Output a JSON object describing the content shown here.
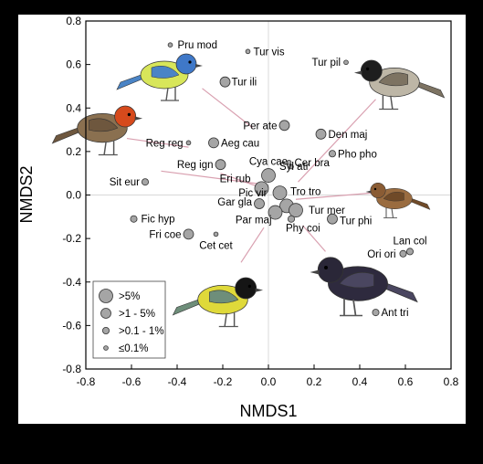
{
  "chart_data": {
    "type": "scatter",
    "title": "",
    "xlabel": "NMDS1",
    "ylabel": "NMDS2",
    "xlim": [
      -0.8,
      0.8
    ],
    "ylim": [
      -0.8,
      0.8
    ],
    "xticks": [
      "-0.8",
      "-0.6",
      "-0.4",
      "-0.2",
      "0.0",
      "0.2",
      "0.4",
      "0.6",
      "0.8"
    ],
    "yticks": [
      "0.8",
      "0.6",
      "0.4",
      "0.2",
      "0.0",
      "-0.2",
      "-0.4",
      "-0.6",
      "-0.8"
    ],
    "grid": false,
    "reference_lines": [
      0,
      0
    ],
    "legend_position": "bottom-left",
    "size_classes": [
      {
        "label": ">5%"
      },
      {
        "label": ">1 - 5%"
      },
      {
        "label": ">0.1 - 1%"
      },
      {
        "label": "≤0.1%"
      }
    ],
    "points": [
      {
        "label": "Pru mod",
        "x": -0.43,
        "y": 0.69,
        "size_class": 3
      },
      {
        "label": "Tur vis",
        "x": -0.09,
        "y": 0.66,
        "size_class": 3
      },
      {
        "label": "Tur pil",
        "x": 0.34,
        "y": 0.61,
        "size_class": 3
      },
      {
        "label": "Tur ili",
        "x": -0.19,
        "y": 0.52,
        "size_class": 1
      },
      {
        "label": "Per ate",
        "x": 0.07,
        "y": 0.32,
        "size_class": 1
      },
      {
        "label": "Den maj",
        "x": 0.23,
        "y": 0.28,
        "size_class": 1
      },
      {
        "label": "Reg reg",
        "x": -0.35,
        "y": 0.24,
        "size_class": 3
      },
      {
        "label": "Aeg cau",
        "x": -0.24,
        "y": 0.24,
        "size_class": 1
      },
      {
        "label": "Pho pho",
        "x": 0.28,
        "y": 0.19,
        "size_class": 2
      },
      {
        "label": "Reg ign",
        "x": -0.21,
        "y": 0.14,
        "size_class": 1
      },
      {
        "label": "Cya cae",
        "x": 0.1,
        "y": 0.13,
        "size_class": 3
      },
      {
        "label": "Cer bra",
        "x": 0.09,
        "y": 0.15,
        "size_class": 3
      },
      {
        "label": "Sit eur",
        "x": -0.54,
        "y": 0.06,
        "size_class": 2
      },
      {
        "label": "Syl atr",
        "x": 0.0,
        "y": 0.09,
        "size_class": 0
      },
      {
        "label": "Eri rub",
        "x": -0.03,
        "y": 0.03,
        "size_class": 0
      },
      {
        "label": "Pic vir",
        "x": 0.05,
        "y": 0.01,
        "size_class": 0
      },
      {
        "label": "Tro tro",
        "x": 0.08,
        "y": -0.05,
        "size_class": 0
      },
      {
        "label": "Gar gla",
        "x": -0.04,
        "y": -0.04,
        "size_class": 1
      },
      {
        "label": "Tur mer",
        "x": 0.12,
        "y": -0.07,
        "size_class": 0
      },
      {
        "label": "Par maj",
        "x": 0.03,
        "y": -0.08,
        "size_class": 0
      },
      {
        "label": "Phy coi",
        "x": 0.1,
        "y": -0.11,
        "size_class": 2
      },
      {
        "label": "Tur phi",
        "x": 0.28,
        "y": -0.11,
        "size_class": 1
      },
      {
        "label": "Fic hyp",
        "x": -0.59,
        "y": -0.11,
        "size_class": 2
      },
      {
        "label": "Fri coe",
        "x": -0.35,
        "y": -0.18,
        "size_class": 1
      },
      {
        "label": "Cet cet",
        "x": -0.23,
        "y": -0.18,
        "size_class": 3
      },
      {
        "label": "Lan col",
        "x": 0.62,
        "y": -0.26,
        "size_class": 2
      },
      {
        "label": "Ori ori",
        "x": 0.59,
        "y": -0.27,
        "size_class": 2
      },
      {
        "label": "Ant tri",
        "x": 0.47,
        "y": -0.54,
        "size_class": 2
      }
    ]
  },
  "illustrations": [
    {
      "name": "blue-tit-illustration",
      "body": "#d8e65a",
      "head": "#3f78c8",
      "wing": "#4a84c6"
    },
    {
      "name": "blackcap-illustration",
      "body": "#bdb6a6",
      "head": "#1e1e1e",
      "wing": "#7d7362"
    },
    {
      "name": "robin-illustration",
      "body": "#8a7050",
      "head": "#d64a1c",
      "wing": "#6e573e"
    },
    {
      "name": "wren-illustration",
      "body": "#9a6c40",
      "head": "#8a5c34",
      "wing": "#6f4a28"
    },
    {
      "name": "great-tit-illustration",
      "body": "#dfd93a",
      "head": "#151515",
      "wing": "#6e8e7a"
    },
    {
      "name": "blackbird-illustration",
      "body": "#2e2a3e",
      "head": "#2a2738",
      "wing": "#4a4660"
    }
  ],
  "colors": {
    "point_fill": "#a5a5a5",
    "point_stroke": "#333333",
    "connector": "#d9a0b0"
  }
}
